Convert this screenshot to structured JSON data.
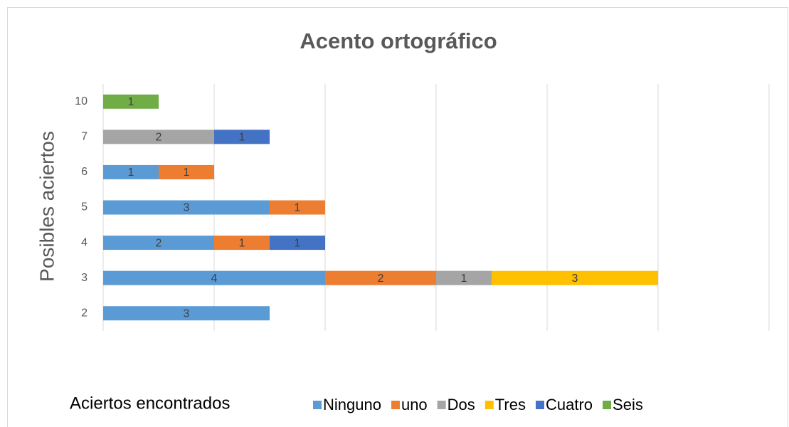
{
  "chart_data": {
    "type": "stacked_barh",
    "title": "Acento ortográfico",
    "ylabel": "Posibles  aciertos",
    "xlabel": "Aciertos encontrados",
    "categories": [
      "2",
      "3",
      "4",
      "5",
      "6",
      "7",
      "10"
    ],
    "series": [
      {
        "name": "Ninguno",
        "color": "#5b9bd5",
        "values": [
          3,
          4,
          2,
          3,
          1,
          null,
          null
        ]
      },
      {
        "name": "uno",
        "color": "#ed7d31",
        "values": [
          null,
          2,
          1,
          1,
          1,
          null,
          null
        ]
      },
      {
        "name": "Dos",
        "color": "#a5a5a5",
        "values": [
          null,
          1,
          null,
          null,
          null,
          2,
          null
        ]
      },
      {
        "name": "Tres",
        "color": "#ffc000",
        "values": [
          null,
          3,
          null,
          null,
          null,
          null,
          null
        ]
      },
      {
        "name": "Cuatro",
        "color": "#4472c4",
        "values": [
          null,
          null,
          1,
          null,
          null,
          1,
          null
        ]
      },
      {
        "name": "Seis",
        "color": "#70ad47",
        "values": [
          null,
          null,
          null,
          null,
          null,
          null,
          1
        ]
      }
    ],
    "xlim": [
      0,
      12
    ],
    "xticks": [
      0,
      2,
      4,
      6,
      8,
      10,
      12
    ],
    "grid": true,
    "legend": "bottom",
    "data_labels": true
  }
}
